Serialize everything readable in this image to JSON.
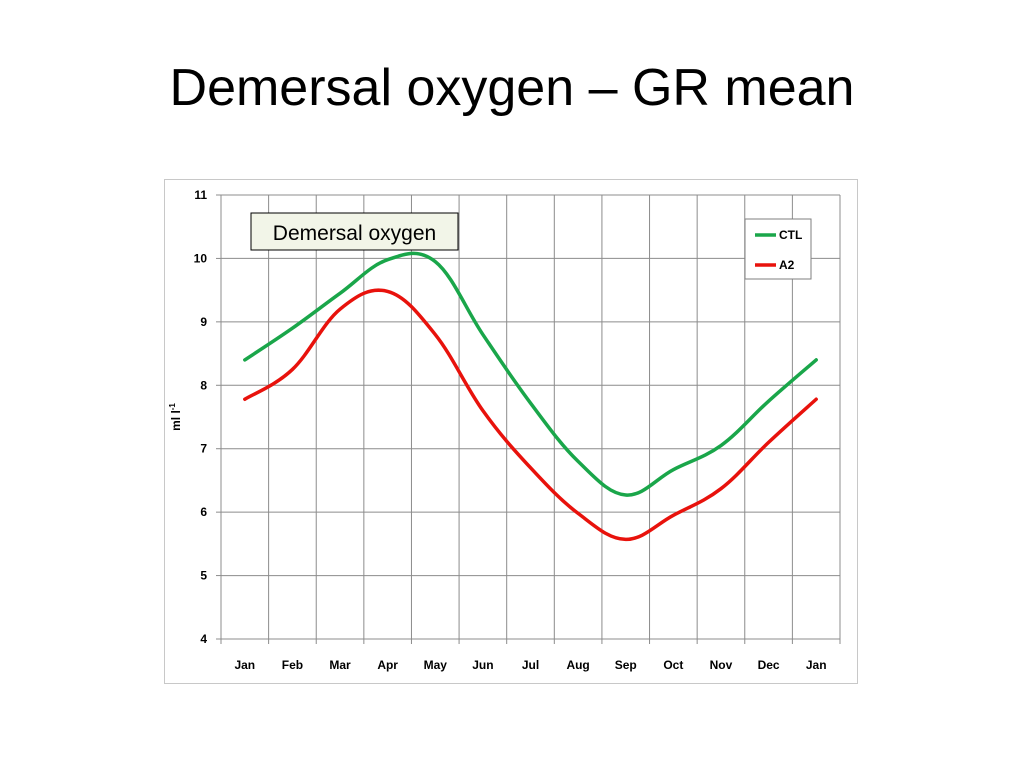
{
  "slide": {
    "title": "Demersal oxygen – GR mean"
  },
  "chart_data": {
    "type": "line",
    "title": "Demersal oxygen",
    "xlabel": "",
    "ylabel": "ml l",
    "ylabel_superscript": "-1",
    "categories": [
      "Jan",
      "Feb",
      "Mar",
      "Apr",
      "May",
      "Jun",
      "Jul",
      "Aug",
      "Sep",
      "Oct",
      "Nov",
      "Dec",
      "Jan"
    ],
    "ylim": [
      4,
      11
    ],
    "yticks": [
      4,
      5,
      6,
      7,
      8,
      9,
      10,
      11
    ],
    "grid": true,
    "legend_position": "top-right",
    "series": [
      {
        "name": "CTL",
        "color": "#1aa64a",
        "values": [
          8.4,
          8.9,
          9.45,
          9.98,
          9.95,
          8.8,
          7.72,
          6.8,
          6.27,
          6.67,
          7.05,
          7.75,
          8.4
        ]
      },
      {
        "name": "A2",
        "color": "#e8120c",
        "values": [
          7.78,
          8.25,
          9.2,
          9.48,
          8.8,
          7.6,
          6.7,
          5.98,
          5.57,
          5.95,
          6.37,
          7.1,
          7.78
        ]
      }
    ]
  }
}
